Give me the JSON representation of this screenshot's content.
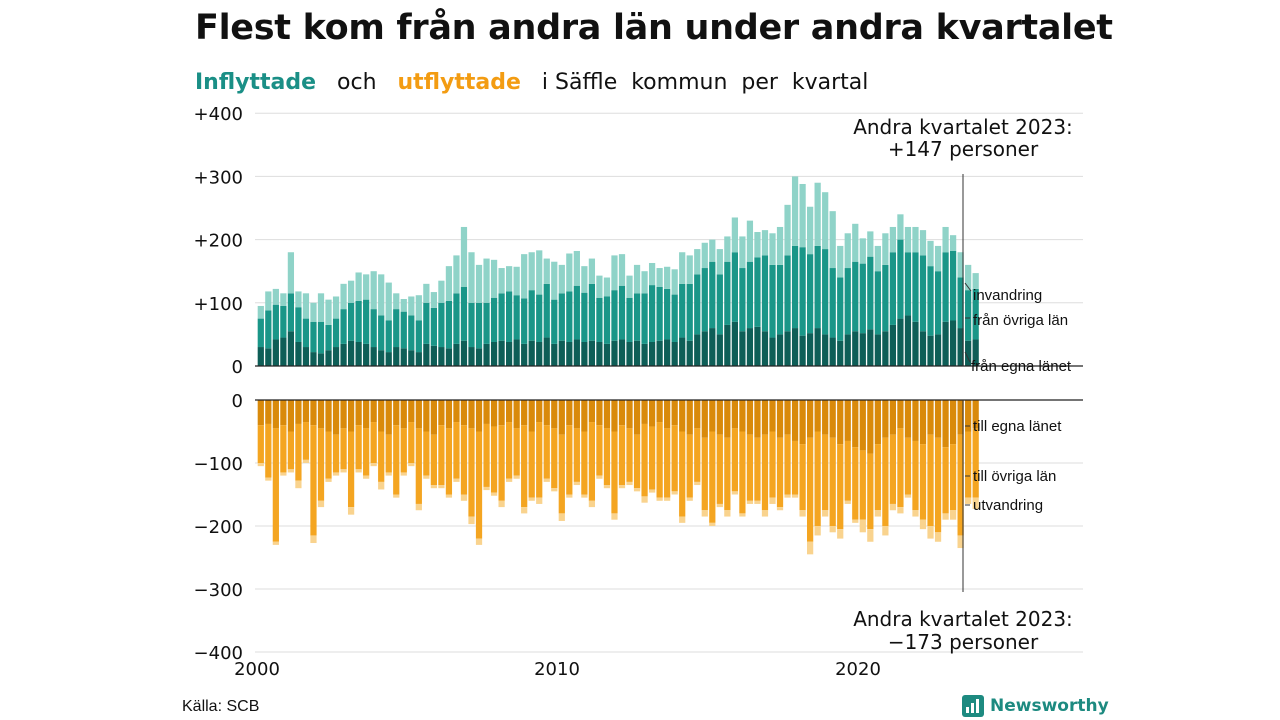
{
  "title": "Flest kom från andra län under andra kvartalet",
  "subtitle": {
    "inflyttade": "Inflyttade",
    "och": "och",
    "utflyttade": "utflyttade",
    "rest": "i Säffle  kommun  per  kvartal"
  },
  "source": "Källa: SCB",
  "brand": "Newsworthy",
  "colors": {
    "in_egna": "#0e5e57",
    "in_ovriga": "#1a9688",
    "in_invandring": "#8fd3c8",
    "ut_egna": "#d98a0b",
    "ut_ovriga": "#f4a521",
    "ut_utvandring": "#f9d38e"
  },
  "chart_data": {
    "type": "bar",
    "stacked": true,
    "x_start": "2000 Q1",
    "x_end": "2023 Q2",
    "ylim": [
      -400,
      400
    ],
    "y_ticks": [
      "+400",
      "+300",
      "+200",
      "+100",
      "0",
      "0",
      "−100",
      "−200",
      "−300",
      "−400"
    ],
    "x_ticks": [
      "2000",
      "2010",
      "2020"
    ],
    "series_in": [
      {
        "name": "från egna länet",
        "values": [
          30,
          28,
          42,
          45,
          55,
          38,
          30,
          22,
          20,
          25,
          30,
          35,
          40,
          38,
          35,
          30,
          25,
          22,
          30,
          28,
          25,
          22,
          35,
          32,
          30,
          28,
          35,
          40,
          30,
          28,
          35,
          38,
          40,
          38,
          42,
          35,
          40,
          38,
          45,
          35,
          40,
          38,
          42,
          38,
          40,
          38,
          35,
          40,
          42,
          38,
          40,
          35,
          38,
          40,
          42,
          38,
          45,
          40,
          50,
          55,
          60,
          50,
          65,
          70,
          55,
          60,
          62,
          55,
          45,
          50,
          55,
          60,
          48,
          52,
          60,
          50,
          45,
          40,
          50,
          55,
          52,
          58,
          50,
          55,
          65,
          75,
          80,
          70,
          55,
          48,
          50,
          70,
          72,
          60,
          40,
          42
        ]
      },
      {
        "name": "från övriga län",
        "values": [
          45,
          60,
          55,
          50,
          60,
          55,
          45,
          48,
          50,
          40,
          45,
          55,
          60,
          65,
          70,
          60,
          55,
          50,
          60,
          58,
          55,
          50,
          65,
          60,
          70,
          75,
          80,
          85,
          70,
          72,
          65,
          70,
          75,
          80,
          70,
          72,
          80,
          75,
          85,
          70,
          75,
          80,
          85,
          78,
          90,
          70,
          75,
          80,
          85,
          70,
          75,
          80,
          90,
          85,
          80,
          75,
          85,
          90,
          95,
          100,
          105,
          95,
          100,
          110,
          100,
          105,
          110,
          120,
          115,
          110,
          120,
          130,
          140,
          125,
          130,
          135,
          110,
          100,
          105,
          110,
          110,
          115,
          100,
          105,
          115,
          125,
          100,
          110,
          120,
          110,
          100,
          110,
          110,
          80,
          80,
          80
        ]
      },
      {
        "name": "invandring",
        "values": [
          20,
          30,
          25,
          20,
          65,
          25,
          40,
          30,
          45,
          40,
          35,
          40,
          35,
          45,
          40,
          60,
          65,
          60,
          25,
          20,
          30,
          40,
          30,
          25,
          35,
          55,
          60,
          95,
          80,
          60,
          70,
          60,
          40,
          40,
          45,
          70,
          60,
          70,
          40,
          60,
          45,
          60,
          55,
          42,
          40,
          35,
          30,
          55,
          50,
          35,
          45,
          35,
          35,
          30,
          35,
          40,
          50,
          45,
          40,
          40,
          35,
          40,
          40,
          55,
          50,
          65,
          40,
          40,
          50,
          60,
          80,
          110,
          100,
          75,
          100,
          90,
          90,
          50,
          55,
          60,
          40,
          40,
          40,
          50,
          40,
          40,
          40,
          40,
          40,
          40,
          40,
          40,
          25,
          40,
          40,
          25
        ]
      }
    ],
    "series_out": [
      {
        "name": "till egna länet",
        "values": [
          40,
          38,
          45,
          40,
          50,
          38,
          35,
          40,
          45,
          50,
          55,
          45,
          50,
          40,
          45,
          35,
          50,
          55,
          40,
          45,
          35,
          45,
          50,
          55,
          40,
          45,
          35,
          40,
          45,
          50,
          38,
          42,
          40,
          35,
          45,
          40,
          50,
          35,
          40,
          45,
          55,
          40,
          45,
          50,
          35,
          40,
          45,
          50,
          40,
          45,
          55,
          38,
          42,
          35,
          45,
          40,
          50,
          55,
          45,
          60,
          50,
          55,
          60,
          45,
          50,
          55,
          60,
          55,
          50,
          60,
          55,
          65,
          70,
          60,
          50,
          55,
          60,
          70,
          65,
          75,
          80,
          85,
          70,
          60,
          55,
          45,
          60,
          65,
          70,
          55,
          60,
          75,
          70,
          55,
          50,
          45
        ]
      },
      {
        "name": "till övriga län",
        "values": [
          60,
          85,
          180,
          75,
          60,
          90,
          60,
          175,
          115,
          75,
          60,
          65,
          120,
          70,
          75,
          65,
          80,
          60,
          110,
          70,
          65,
          120,
          70,
          80,
          95,
          105,
          90,
          110,
          140,
          170,
          100,
          105,
          120,
          90,
          75,
          130,
          105,
          120,
          85,
          95,
          125,
          110,
          85,
          100,
          125,
          80,
          90,
          130,
          95,
          85,
          85,
          115,
          100,
          120,
          110,
          105,
          135,
          100,
          85,
          115,
          145,
          110,
          115,
          100,
          130,
          105,
          100,
          120,
          105,
          110,
          95,
          85,
          105,
          165,
          150,
          120,
          140,
          135,
          95,
          115,
          110,
          120,
          105,
          140,
          110,
          125,
          90,
          110,
          120,
          145,
          150,
          105,
          105,
          160,
          105,
          110
        ]
      },
      {
        "name": "utvandring",
        "values": [
          5,
          5,
          5,
          5,
          5,
          12,
          5,
          12,
          10,
          5,
          5,
          5,
          12,
          5,
          5,
          5,
          12,
          5,
          5,
          5,
          5,
          10,
          5,
          5,
          5,
          5,
          5,
          10,
          12,
          10,
          5,
          5,
          10,
          5,
          5,
          10,
          5,
          10,
          5,
          5,
          12,
          5,
          5,
          5,
          10,
          5,
          5,
          10,
          5,
          5,
          5,
          10,
          5,
          5,
          5,
          5,
          10,
          5,
          5,
          10,
          5,
          5,
          10,
          5,
          5,
          5,
          5,
          10,
          10,
          5,
          5,
          5,
          10,
          20,
          15,
          10,
          10,
          15,
          5,
          5,
          20,
          20,
          10,
          15,
          10,
          10,
          5,
          10,
          15,
          20,
          15,
          10,
          15,
          20,
          10,
          18
        ]
      }
    ],
    "annotations": {
      "top_line1": "Andra kvartalet 2023:",
      "top_line2": "+147 personer",
      "bottom_line1": "Andra kvartalet 2023:",
      "bottom_line2": "−173 personer"
    },
    "end_labels_in": [
      "invandring",
      "från övriga län",
      "från egna länet"
    ],
    "end_labels_out": [
      "till egna länet",
      "till övriga län",
      "utvandring"
    ]
  }
}
